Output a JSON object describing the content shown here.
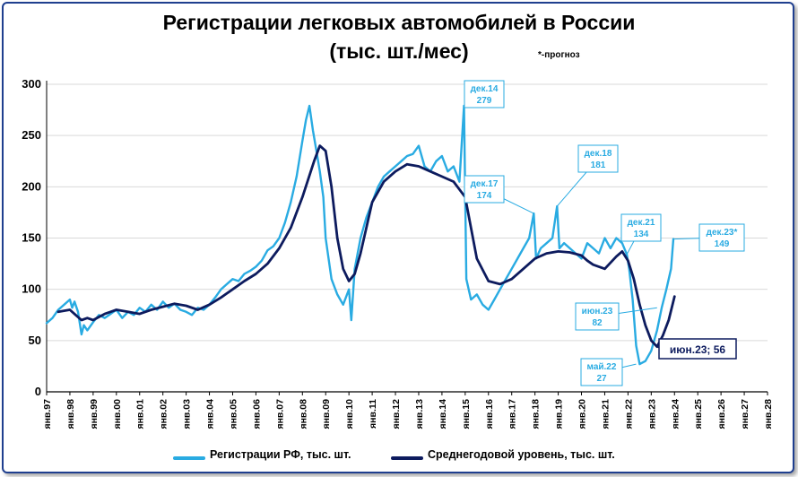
{
  "chart_data": {
    "type": "line",
    "title": "Регистрации легковых автомобилей в России",
    "subtitle": "(тыс. шт./мес)",
    "note": "*-прогноз",
    "ylim": [
      0,
      300
    ],
    "yticks": [
      "0",
      "50",
      "100",
      "150",
      "200",
      "250",
      "300"
    ],
    "xlim": [
      1997,
      2028
    ],
    "xticks": [
      "янв.97",
      "янв.98",
      "янв.99",
      "янв.00",
      "янв.01",
      "янв.02",
      "янв.03",
      "янв.04",
      "янв.05",
      "янв.06",
      "янв.07",
      "янв.08",
      "янв.09",
      "янв.10",
      "янв.11",
      "янв.12",
      "янв.13",
      "янв.14",
      "янв.15",
      "янв.16",
      "янв.17",
      "янв.18",
      "янв.19",
      "янв.20",
      "янв.21",
      "янв.22",
      "янв.23",
      "янв.24",
      "янв.25",
      "янв.26",
      "янв.27",
      "янв.28"
    ],
    "grid": "horizontal",
    "legend": "bottom",
    "series": [
      {
        "name": "Регистрации РФ, тыс. шт.",
        "color": "#29abe2",
        "x": [
          1997.0,
          1997.25,
          1997.5,
          1997.75,
          1998.0,
          1998.1,
          1998.2,
          1998.35,
          1998.5,
          1998.6,
          1998.75,
          1999.0,
          1999.25,
          1999.5,
          1999.75,
          2000.0,
          2000.25,
          2000.5,
          2000.75,
          2001.0,
          2001.25,
          2001.5,
          2001.75,
          2002.0,
          2002.25,
          2002.5,
          2002.75,
          2003.0,
          2003.25,
          2003.5,
          2003.75,
          2004.0,
          2004.25,
          2004.5,
          2004.75,
          2005.0,
          2005.25,
          2005.5,
          2005.75,
          2006.0,
          2006.25,
          2006.5,
          2006.75,
          2007.0,
          2007.25,
          2007.5,
          2007.75,
          2008.0,
          2008.15,
          2008.3,
          2008.45,
          2008.6,
          2008.75,
          2008.9,
          2009.0,
          2009.25,
          2009.5,
          2009.75,
          2010.0,
          2010.1,
          2010.25,
          2010.5,
          2010.75,
          2011.0,
          2011.25,
          2011.5,
          2011.75,
          2012.0,
          2012.25,
          2012.5,
          2012.75,
          2013.0,
          2013.25,
          2013.5,
          2013.75,
          2014.0,
          2014.25,
          2014.5,
          2014.75,
          2014.95,
          2015.05,
          2015.25,
          2015.5,
          2015.75,
          2016.0,
          2016.25,
          2016.5,
          2016.75,
          2017.0,
          2017.25,
          2017.5,
          2017.75,
          2017.95,
          2018.05,
          2018.25,
          2018.5,
          2018.75,
          2018.95,
          2019.05,
          2019.25,
          2019.5,
          2019.75,
          2020.0,
          2020.25,
          2020.5,
          2020.75,
          2021.0,
          2021.25,
          2021.5,
          2021.75,
          2021.95,
          2022.05,
          2022.2,
          2022.35,
          2022.5,
          2022.75,
          2023.0,
          2023.25,
          2023.45,
          2023.65,
          2023.85,
          2023.95
        ],
        "y": [
          67,
          72,
          80,
          85,
          90,
          82,
          88,
          78,
          56,
          65,
          60,
          68,
          75,
          72,
          76,
          80,
          72,
          78,
          75,
          82,
          78,
          85,
          80,
          88,
          82,
          86,
          80,
          78,
          75,
          82,
          80,
          85,
          92,
          100,
          105,
          110,
          108,
          115,
          118,
          122,
          128,
          138,
          142,
          150,
          165,
          185,
          210,
          245,
          265,
          279,
          255,
          235,
          215,
          190,
          150,
          110,
          95,
          85,
          100,
          70,
          120,
          150,
          170,
          185,
          200,
          210,
          215,
          220,
          225,
          230,
          232,
          240,
          220,
          215,
          225,
          230,
          215,
          220,
          205,
          279,
          110,
          90,
          95,
          85,
          80,
          90,
          100,
          110,
          120,
          130,
          140,
          150,
          174,
          130,
          140,
          145,
          150,
          181,
          140,
          145,
          140,
          135,
          130,
          145,
          140,
          135,
          150,
          140,
          150,
          145,
          134,
          120,
          90,
          45,
          27,
          30,
          40,
          60,
          82,
          100,
          120,
          149
        ]
      },
      {
        "name": "Среднегодовой уровень, тыс. шт.",
        "color": "#0d1b5e",
        "x": [
          1997.5,
          1998.0,
          1998.25,
          1998.5,
          1998.75,
          1999.0,
          1999.25,
          1999.5,
          1999.75,
          2000.0,
          2000.5,
          2001.0,
          2001.5,
          2002.0,
          2002.5,
          2003.0,
          2003.5,
          2004.0,
          2004.5,
          2005.0,
          2005.5,
          2006.0,
          2006.5,
          2007.0,
          2007.5,
          2008.0,
          2008.5,
          2008.75,
          2009.0,
          2009.25,
          2009.5,
          2009.75,
          2010.0,
          2010.25,
          2010.5,
          2010.75,
          2011.0,
          2011.5,
          2012.0,
          2012.5,
          2013.0,
          2013.5,
          2014.0,
          2014.5,
          2015.0,
          2015.25,
          2015.5,
          2016.0,
          2016.5,
          2017.0,
          2017.5,
          2018.0,
          2018.5,
          2019.0,
          2019.5,
          2020.0,
          2020.25,
          2020.5,
          2021.0,
          2021.5,
          2021.75,
          2022.0,
          2022.25,
          2022.5,
          2022.75,
          2023.0,
          2023.25,
          2023.5,
          2023.75,
          2024.0
        ],
        "y": [
          78,
          80,
          75,
          70,
          72,
          70,
          73,
          76,
          78,
          80,
          78,
          76,
          80,
          83,
          86,
          84,
          80,
          85,
          92,
          100,
          108,
          115,
          125,
          140,
          160,
          190,
          225,
          240,
          235,
          200,
          150,
          120,
          108,
          115,
          135,
          160,
          185,
          205,
          215,
          222,
          220,
          215,
          210,
          205,
          190,
          160,
          130,
          108,
          105,
          110,
          120,
          130,
          135,
          137,
          136,
          133,
          128,
          124,
          120,
          132,
          137,
          128,
          110,
          85,
          65,
          50,
          44,
          55,
          70,
          93
        ]
      }
    ],
    "annotations": [
      {
        "label": "дек.14",
        "value": "279"
      },
      {
        "label": "дек.17",
        "value": "174"
      },
      {
        "label": "дек.18",
        "value": "181"
      },
      {
        "label": "дек.21",
        "value": "134"
      },
      {
        "label": "дек.23*",
        "value": "149"
      },
      {
        "label": "июн.23",
        "value": "82"
      },
      {
        "label": "май.22",
        "value": "27"
      },
      {
        "label": "июн.23; 56",
        "value": ""
      }
    ]
  }
}
